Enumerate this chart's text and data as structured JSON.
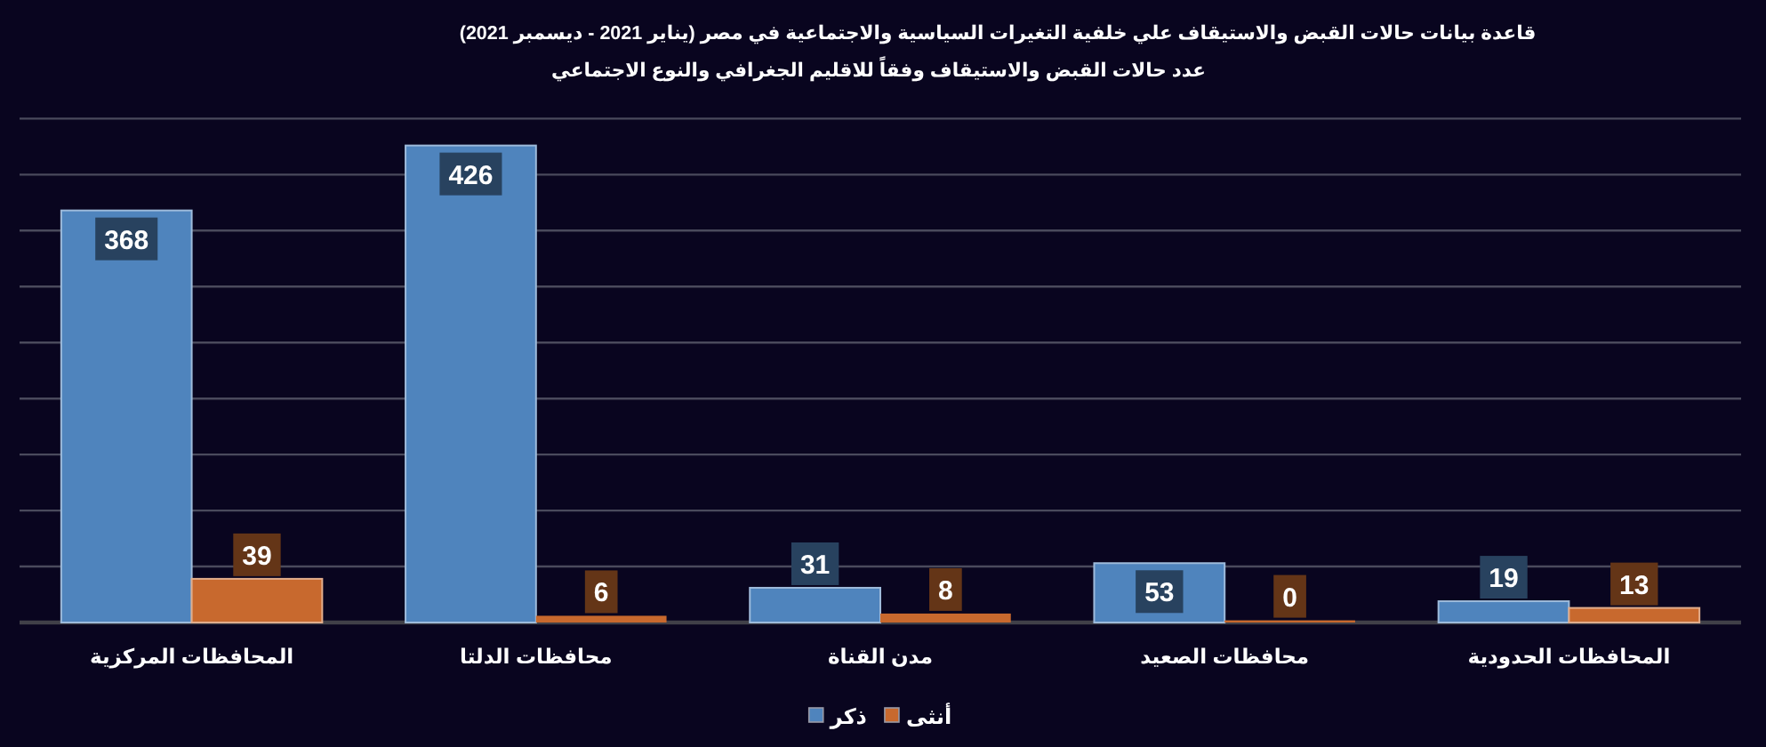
{
  "chart_data": {
    "type": "bar",
    "title": "قاعدة بيانات حالات القبض والاستيقاف علي خلفية التغيرات السياسية والاجتماعية في مصر (يناير 2021 - ديسمبر 2021)",
    "subtitle": "عدد حالات القبض والاستيقاف وفقاً للاقليم الجغرافي والنوع الاجتماعي",
    "categories": [
      "المحافظات المركزية",
      "محافظات الدلتا",
      "مدن القناة",
      "محافظات الصعيد",
      "المحافظات الحدودية"
    ],
    "series": [
      {
        "name": "ذكر",
        "color": "#4f84bd",
        "values": [
          368,
          426,
          31,
          53,
          19
        ]
      },
      {
        "name": "أنثى",
        "color": "#c8692e",
        "values": [
          39,
          6,
          8,
          0,
          13
        ]
      }
    ],
    "ylim": [
      0,
      450
    ],
    "yticks": [
      {
        "value": 0,
        "label": null
      },
      {
        "value": 50,
        "label": null
      },
      {
        "value": 100,
        "label": null
      },
      {
        "value": 150,
        "label": null
      },
      {
        "value": 200,
        "label": null
      },
      {
        "value": 250,
        "label": null
      },
      {
        "value": 300,
        "label": null
      },
      {
        "value": 350,
        "label": null
      },
      {
        "value": 400,
        "label": null
      },
      {
        "value": 450,
        "label": null
      }
    ],
    "grid": "y",
    "tick_labels": "x",
    "legend": "bottom",
    "data_labels": true
  }
}
